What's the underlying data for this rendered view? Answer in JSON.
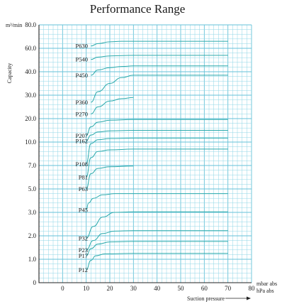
{
  "chart_data": {
    "type": "line",
    "title": "Performance Range",
    "ylabel": "Capacity",
    "yunit": "m³/min",
    "xlabel": "Suction pressure",
    "xunit_1": "mbar abs",
    "xunit_2": "hPa abs",
    "x_ticks": [
      "0",
      "10",
      "20",
      "30",
      "40",
      "50",
      "60",
      "70",
      "80"
    ],
    "y_ticks": [
      "0",
      "1.0",
      "2.0",
      "3.0",
      "5.0",
      "7.0",
      "10.0",
      "20.0",
      "30.0",
      "40.0",
      "60.0",
      "80.0"
    ],
    "xlim": [
      -10,
      80
    ],
    "series": [
      {
        "name": "P12",
        "points": [
          [
            10,
            0.55
          ],
          [
            12,
            0.95
          ],
          [
            14,
            1.15
          ],
          [
            18,
            1.23
          ],
          [
            30,
            1.25
          ],
          [
            70,
            1.25
          ]
        ]
      },
      {
        "name": "P17",
        "points": [
          [
            10,
            1.15
          ],
          [
            12,
            1.45
          ],
          [
            15,
            1.65
          ],
          [
            20,
            1.74
          ],
          [
            30,
            1.76
          ],
          [
            70,
            1.76
          ]
        ]
      },
      {
        "name": "P23",
        "points": [
          [
            10,
            1.4
          ],
          [
            13,
            1.8
          ],
          [
            17,
            2.1
          ],
          [
            22,
            2.2
          ],
          [
            30,
            2.22
          ],
          [
            70,
            2.22
          ]
        ]
      },
      {
        "name": "P32",
        "points": [
          [
            10,
            1.9
          ],
          [
            13,
            2.4
          ],
          [
            17,
            2.8
          ],
          [
            22,
            3.0
          ],
          [
            30,
            3.05
          ],
          [
            70,
            3.05
          ]
        ]
      },
      {
        "name": "P45",
        "points": [
          [
            10,
            3.2
          ],
          [
            11,
            3.8
          ],
          [
            13,
            4.2
          ],
          [
            17,
            4.5
          ],
          [
            22,
            4.6
          ],
          [
            70,
            4.6
          ]
        ]
      },
      {
        "name": "P63",
        "points": [
          [
            10,
            5.0
          ],
          [
            12,
            6.3
          ],
          [
            15,
            6.75
          ],
          [
            20,
            6.9
          ],
          [
            30,
            6.95
          ]
        ]
      },
      {
        "name": "P81",
        "points": [
          [
            10,
            6.0
          ],
          [
            12,
            8.0
          ],
          [
            15,
            8.8
          ],
          [
            20,
            9.0
          ],
          [
            30,
            9.1
          ],
          [
            70,
            9.1
          ]
        ]
      },
      {
        "name": "P108",
        "points": [
          [
            10,
            7.2
          ],
          [
            12,
            9.8
          ],
          [
            15,
            11.0
          ],
          [
            20,
            11.5
          ],
          [
            30,
            11.7
          ],
          [
            70,
            11.7
          ]
        ]
      },
      {
        "name": "P162",
        "points": [
          [
            10,
            10.5
          ],
          [
            12,
            13.0
          ],
          [
            15,
            14.3
          ],
          [
            20,
            14.8
          ],
          [
            30,
            15.0
          ],
          [
            70,
            15.0
          ]
        ]
      },
      {
        "name": "P207",
        "points": [
          [
            10,
            12.8
          ],
          [
            12,
            16.5
          ],
          [
            15,
            18.5
          ],
          [
            20,
            19.3
          ],
          [
            30,
            19.6
          ],
          [
            70,
            19.6
          ]
        ]
      },
      {
        "name": "P270",
        "points": [
          [
            12,
            22.0
          ],
          [
            15,
            25.0
          ],
          [
            20,
            27.5
          ],
          [
            25,
            28.5
          ],
          [
            30,
            29.0
          ]
        ]
      },
      {
        "name": "P360",
        "points": [
          [
            12,
            27.0
          ],
          [
            15,
            31.5
          ],
          [
            20,
            35.0
          ],
          [
            25,
            37.5
          ],
          [
            30,
            38.5
          ],
          [
            70,
            38.5
          ]
        ]
      },
      {
        "name": "P450",
        "points": [
          [
            12,
            38.5
          ],
          [
            15,
            41.5
          ],
          [
            20,
            43.5
          ],
          [
            25,
            44.5
          ],
          [
            30,
            45.0
          ],
          [
            70,
            45.0
          ]
        ]
      },
      {
        "name": "P540",
        "points": [
          [
            12,
            50.5
          ],
          [
            15,
            52.5
          ],
          [
            20,
            53.5
          ],
          [
            30,
            54.0
          ],
          [
            70,
            54.0
          ]
        ]
      },
      {
        "name": "P630",
        "points": [
          [
            12,
            62.0
          ],
          [
            15,
            64.0
          ],
          [
            20,
            65.5
          ],
          [
            25,
            66.0
          ],
          [
            70,
            66.0
          ]
        ]
      }
    ]
  }
}
